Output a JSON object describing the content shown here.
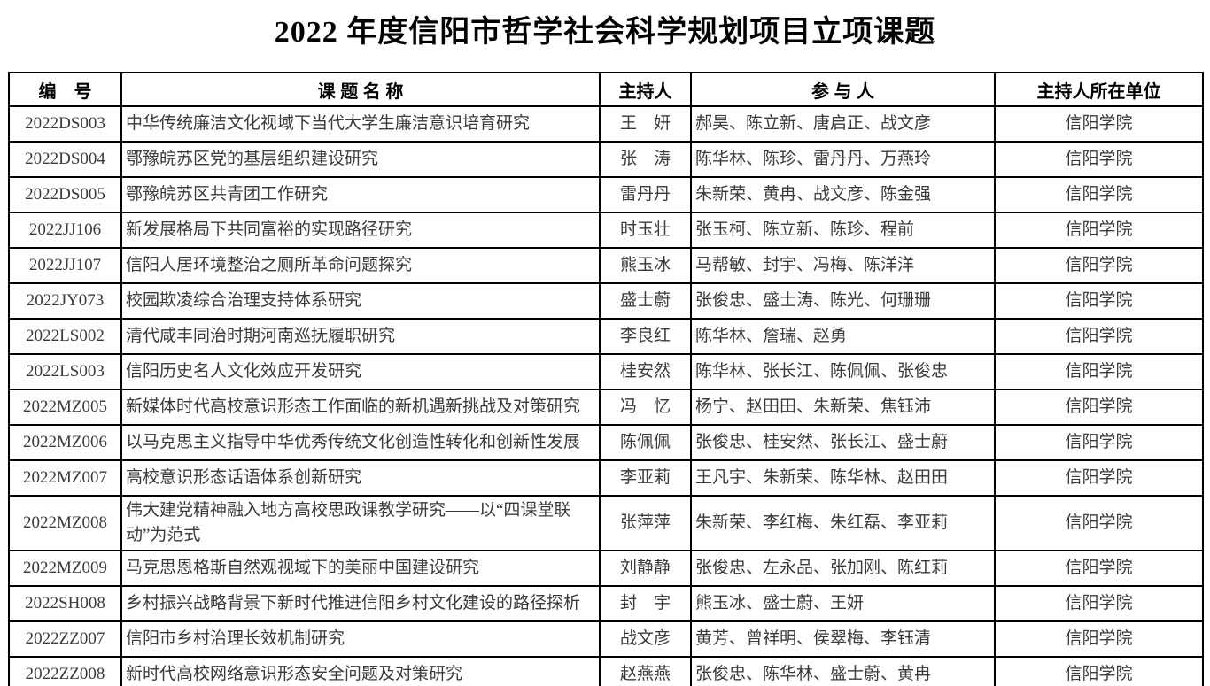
{
  "title": "2022 年度信阳市哲学社会科学规划项目立项课题",
  "table": {
    "headers": {
      "code": "编　号",
      "topic": "课 题 名 称",
      "leader": "主持人",
      "participants": "参 与 人",
      "institution": "主持人所在单位"
    },
    "rows": [
      {
        "code": "2022DS003",
        "topic": "中华传统廉洁文化视域下当代大学生廉洁意识培育研究",
        "leader": "王　妍",
        "participants": "郝昊、陈立新、唐启正、战文彦",
        "institution": "信阳学院"
      },
      {
        "code": "2022DS004",
        "topic": "鄂豫皖苏区党的基层组织建设研究",
        "leader": "张　涛",
        "participants": "陈华林、陈珍、雷丹丹、万燕玲",
        "institution": "信阳学院"
      },
      {
        "code": "2022DS005",
        "topic": "鄂豫皖苏区共青团工作研究",
        "leader": "雷丹丹",
        "participants": "朱新荣、黄冉、战文彦、陈金强",
        "institution": "信阳学院"
      },
      {
        "code": "2022JJ106",
        "topic": "新发展格局下共同富裕的实现路径研究",
        "leader": "时玉壮",
        "participants": "张玉柯、陈立新、陈珍、程前",
        "institution": "信阳学院"
      },
      {
        "code": "2022JJ107",
        "topic": "信阳人居环境整治之厕所革命问题探究",
        "leader": "熊玉冰",
        "participants": "马帮敏、封宇、冯梅、陈洋洋",
        "institution": "信阳学院"
      },
      {
        "code": "2022JY073",
        "topic": "校园欺凌综合治理支持体系研究",
        "leader": "盛士蔚",
        "participants": "张俊忠、盛士涛、陈光、何珊珊",
        "institution": "信阳学院"
      },
      {
        "code": "2022LS002",
        "topic": "清代咸丰同治时期河南巡抚履职研究",
        "leader": "李良红",
        "participants": "陈华林、詹瑞、赵勇",
        "institution": "信阳学院"
      },
      {
        "code": "2022LS003",
        "topic": "信阳历史名人文化效应开发研究",
        "leader": "桂安然",
        "participants": "陈华林、张长江、陈佩佩、张俊忠",
        "institution": "信阳学院"
      },
      {
        "code": "2022MZ005",
        "topic": "新媒体时代高校意识形态工作面临的新机遇新挑战及对策研究",
        "leader": "冯　忆",
        "participants": "杨宁、赵田田、朱新荣、焦钰沛",
        "institution": "信阳学院"
      },
      {
        "code": "2022MZ006",
        "topic": "以马克思主义指导中华优秀传统文化创造性转化和创新性发展",
        "leader": "陈佩佩",
        "participants": "张俊忠、桂安然、张长江、盛士蔚",
        "institution": "信阳学院"
      },
      {
        "code": "2022MZ007",
        "topic": "高校意识形态话语体系创新研究",
        "leader": "李亚莉",
        "participants": "王凡宇、朱新荣、陈华林、赵田田",
        "institution": "信阳学院"
      },
      {
        "code": "2022MZ008",
        "topic": "伟大建党精神融入地方高校思政课教学研究——以“四课堂联动”为范式",
        "leader": "张萍萍",
        "participants": "朱新荣、李红梅、朱红磊、李亚莉",
        "institution": "信阳学院"
      },
      {
        "code": "2022MZ009",
        "topic": "马克思恩格斯自然观视域下的美丽中国建设研究",
        "leader": "刘静静",
        "participants": "张俊忠、左永品、张加刚、陈红莉",
        "institution": "信阳学院"
      },
      {
        "code": "2022SH008",
        "topic": "乡村振兴战略背景下新时代推进信阳乡村文化建设的路径探析",
        "leader": "封　宇",
        "participants": "熊玉冰、盛士蔚、王妍",
        "institution": "信阳学院"
      },
      {
        "code": "2022ZZ007",
        "topic": "信阳市乡村治理长效机制研究",
        "leader": "战文彦",
        "participants": "黄芳、曾祥明、侯翠梅、李钰清",
        "institution": "信阳学院"
      },
      {
        "code": "2022ZZ008",
        "topic": "新时代高校网络意识形态安全问题及对策研究",
        "leader": "赵燕燕",
        "participants": "张俊忠、陈华林、盛士蔚、黄冉",
        "institution": "信阳学院"
      }
    ]
  }
}
